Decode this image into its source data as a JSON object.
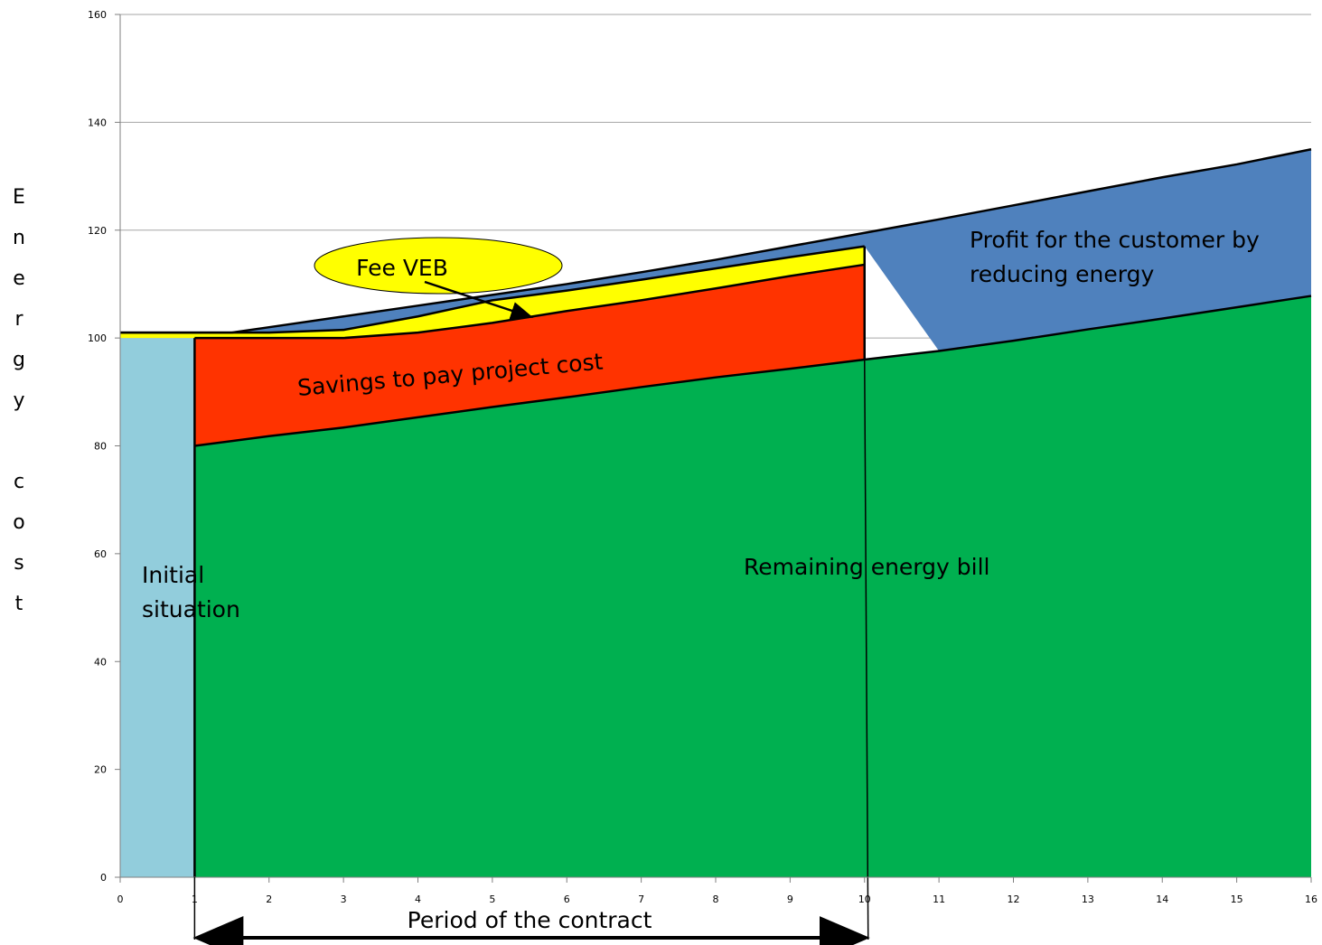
{
  "chart_data": {
    "type": "area",
    "title": "",
    "ylabel": "Energy cost",
    "xlabel": "",
    "xlim": [
      0,
      16
    ],
    "ylim": [
      0,
      160
    ],
    "x_ticks": [
      0,
      1,
      2,
      3,
      4,
      5,
      6,
      7,
      8,
      9,
      10,
      11,
      12,
      13,
      14,
      15,
      16
    ],
    "y_ticks": [
      0,
      20,
      40,
      60,
      80,
      100,
      120,
      140,
      160
    ],
    "grid": "horizontal",
    "series": [
      {
        "name": "Initial situation",
        "color": "#92CDDC",
        "x": [
          0,
          1
        ],
        "y": [
          100,
          100
        ]
      },
      {
        "name": "Remaining energy bill",
        "color": "#00B050",
        "x": [
          1,
          2,
          3,
          4,
          5,
          6,
          7,
          8,
          9,
          10,
          11,
          12,
          13,
          14,
          15,
          16
        ],
        "y": [
          80,
          81.8,
          83.4,
          85.3,
          87.2,
          89,
          90.9,
          92.7,
          94.3,
          96,
          97.6,
          99.5,
          101.6,
          103.6,
          105.7,
          107.8
        ]
      },
      {
        "name": "Savings to pay project cost",
        "color": "#FF3300",
        "x": [
          1,
          2,
          3,
          4,
          5,
          6,
          7,
          8,
          9,
          10
        ],
        "upper": [
          100,
          100,
          100,
          101,
          102.8,
          105,
          107,
          109.2,
          111.5,
          113.6
        ],
        "lower": [
          80,
          81.8,
          83.4,
          85.3,
          87.2,
          89,
          90.9,
          92.7,
          94.3,
          96
        ]
      },
      {
        "name": "Fee VEB",
        "color": "#FFFF00",
        "x": [
          0,
          1,
          2,
          3,
          4,
          5,
          6,
          7,
          8,
          9,
          10
        ],
        "upper": [
          101,
          101,
          101,
          101.5,
          104,
          107,
          108.8,
          110.8,
          112.9,
          115,
          117
        ],
        "lower": [
          100,
          100,
          100,
          100,
          101,
          102.8,
          105,
          107,
          109.2,
          111.5,
          113.6
        ]
      },
      {
        "name": "Profit for the customer by reducing energy",
        "color": "#4F81BD",
        "x": [
          1.5,
          2,
          3,
          4,
          5,
          6,
          7,
          8,
          9,
          10,
          11,
          12,
          13,
          14,
          15,
          16
        ],
        "upper": [
          101,
          102,
          104,
          106,
          108,
          110,
          112.2,
          114.5,
          117,
          119.5,
          122,
          124.6,
          127.2,
          129.8,
          132.2,
          135
        ],
        "lower": [
          101,
          101,
          101.5,
          104,
          107,
          108.8,
          110.8,
          112.9,
          115,
          117,
          97.6,
          99.5,
          101.6,
          103.6,
          105.7,
          107.8
        ]
      }
    ],
    "annotations": {
      "initial": [
        "Initial",
        "situation"
      ],
      "savings": "Savings to pay project cost",
      "fee": "Fee VEB",
      "profit": [
        "Profit for the customer by",
        "reducing energy"
      ],
      "remaining": "Remaining energy bill",
      "period": "Period of the contract",
      "period_range": [
        1,
        10
      ]
    }
  },
  "ylabel_letters": [
    "E",
    "n",
    "e",
    "r",
    "g",
    "y",
    "",
    "c",
    "o",
    "s",
    "t"
  ]
}
